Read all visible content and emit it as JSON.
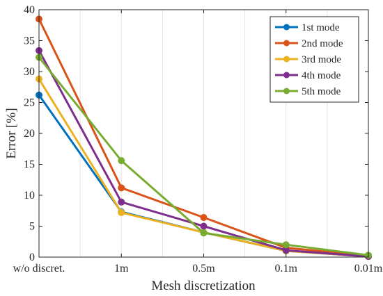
{
  "chart_data": {
    "type": "line",
    "title": "",
    "xlabel": "Mesh discretization",
    "ylabel": "Error [%]",
    "categories": [
      "w/o discret.",
      "1m",
      "0.5m",
      "0.1m",
      "0.01m"
    ],
    "ylim": [
      0,
      40
    ],
    "yticks": [
      0,
      5,
      10,
      15,
      20,
      25,
      30,
      35,
      40
    ],
    "grid": "vertical",
    "legend_position": "top-right",
    "series": [
      {
        "name": "1st mode",
        "color": "#0072BD",
        "values": [
          26.2,
          7.3,
          4.0,
          1.0,
          0.1
        ]
      },
      {
        "name": "2nd mode",
        "color": "#D95319",
        "values": [
          38.5,
          11.2,
          6.4,
          1.5,
          0.2
        ]
      },
      {
        "name": "3rd mode",
        "color": "#EDB120",
        "values": [
          28.8,
          7.2,
          4.0,
          1.0,
          0.1
        ]
      },
      {
        "name": "4th mode",
        "color": "#7E2F8E",
        "values": [
          33.4,
          8.9,
          5.0,
          1.1,
          0.1
        ]
      },
      {
        "name": "5th mode",
        "color": "#77AC30",
        "values": [
          32.3,
          15.6,
          3.9,
          2.0,
          0.3
        ]
      }
    ]
  }
}
